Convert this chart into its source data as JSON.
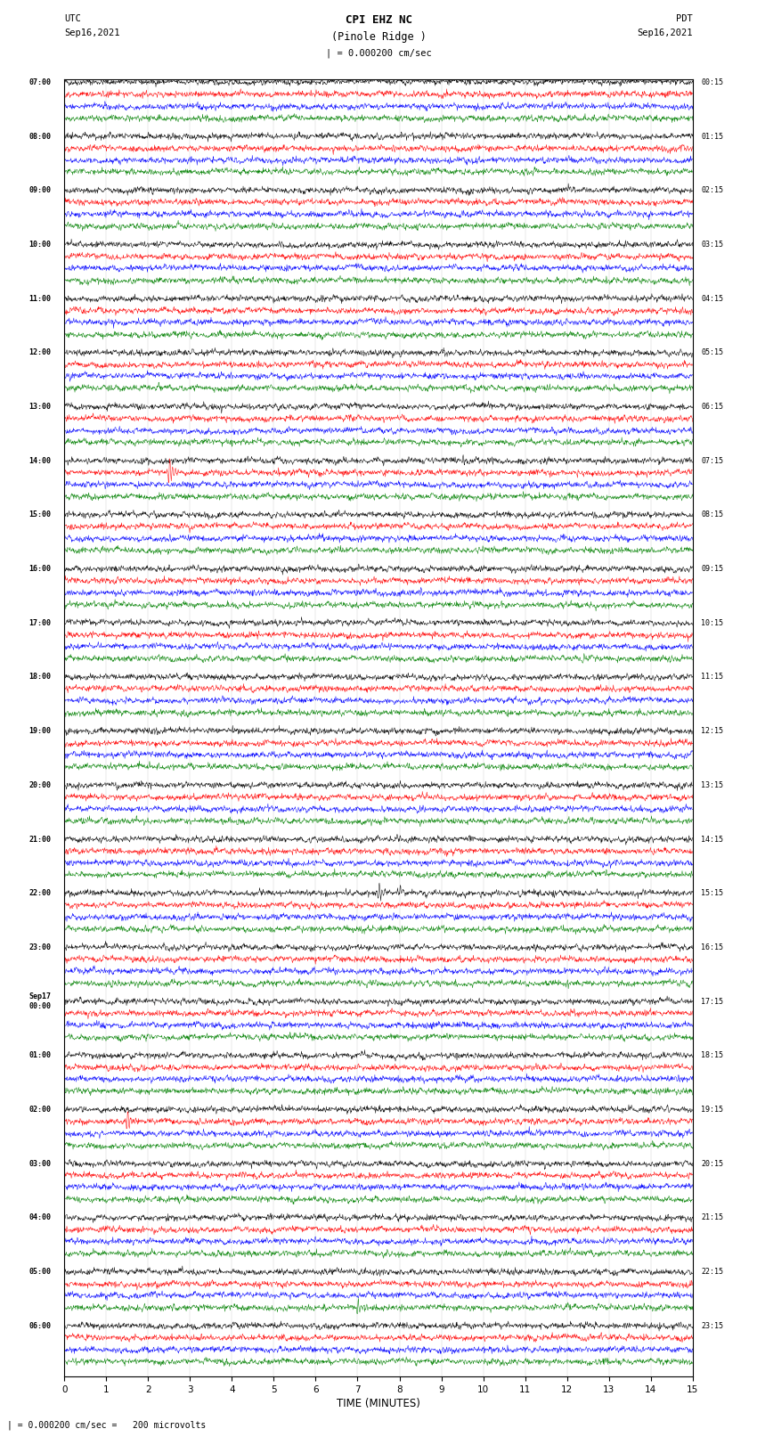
{
  "title_line1": "CPI EHZ NC",
  "title_line2": "(Pinole Ridge )",
  "scale_label": "| = 0.000200 cm/sec",
  "bottom_label": "| = 0.000200 cm/sec =   200 microvolts",
  "xlabel": "TIME (MINUTES)",
  "utc_label": "UTC",
  "utc_date": "Sep16,2021",
  "pdt_label": "PDT",
  "pdt_date": "Sep16,2021",
  "left_times": [
    "07:00",
    "08:00",
    "09:00",
    "10:00",
    "11:00",
    "12:00",
    "13:00",
    "14:00",
    "15:00",
    "16:00",
    "17:00",
    "18:00",
    "19:00",
    "20:00",
    "21:00",
    "22:00",
    "23:00",
    "00:00",
    "01:00",
    "02:00",
    "03:00",
    "04:00",
    "05:00",
    "06:00"
  ],
  "right_times": [
    "00:15",
    "01:15",
    "02:15",
    "03:15",
    "04:15",
    "05:15",
    "06:15",
    "07:15",
    "08:15",
    "09:15",
    "10:15",
    "11:15",
    "12:15",
    "13:15",
    "14:15",
    "15:15",
    "16:15",
    "17:15",
    "18:15",
    "19:15",
    "20:15",
    "21:15",
    "22:15",
    "23:15"
  ],
  "sep17_row": 17,
  "n_rows": 24,
  "traces_per_row": 4,
  "colors": [
    "black",
    "red",
    "blue",
    "green"
  ],
  "bg_color": "#ffffff",
  "line_width": 0.35,
  "noise_scale": 0.028,
  "figwidth": 8.5,
  "figheight": 16.13,
  "dpi": 100,
  "seed": 42
}
